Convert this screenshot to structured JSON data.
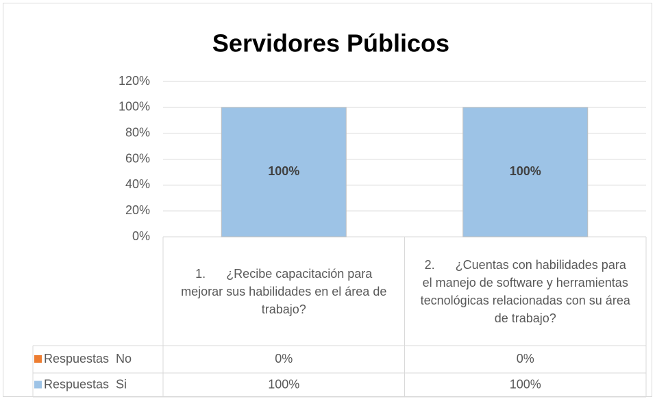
{
  "chart_data": {
    "type": "bar",
    "stacked": true,
    "title": "Servidores Públicos",
    "categories": [
      "1.      ¿Recibe capacitación para mejorar sus habilidades en el área de trabajo?",
      "2.      ¿Cuentas con habilidades para el manejo de software y herramientas tecnológicas relacionadas con su área de trabajo?"
    ],
    "series": [
      {
        "name": "Respuestas  No",
        "color": "#ed7d31",
        "values": [
          0,
          0
        ],
        "value_labels": [
          "0%",
          "0%"
        ]
      },
      {
        "name": "Respuestas  Si",
        "color": "#9dc3e6",
        "values": [
          100,
          100
        ],
        "value_labels": [
          "100%",
          "100%"
        ]
      }
    ],
    "ylim": [
      0,
      120
    ],
    "yticks": [
      {
        "value": 0,
        "label": "0%"
      },
      {
        "value": 20,
        "label": "20%"
      },
      {
        "value": 40,
        "label": "40%"
      },
      {
        "value": 60,
        "label": "60%"
      },
      {
        "value": 80,
        "label": "80%"
      },
      {
        "value": 100,
        "label": "100%"
      },
      {
        "value": 120,
        "label": "120%"
      }
    ],
    "grid": true,
    "data_table": true
  }
}
